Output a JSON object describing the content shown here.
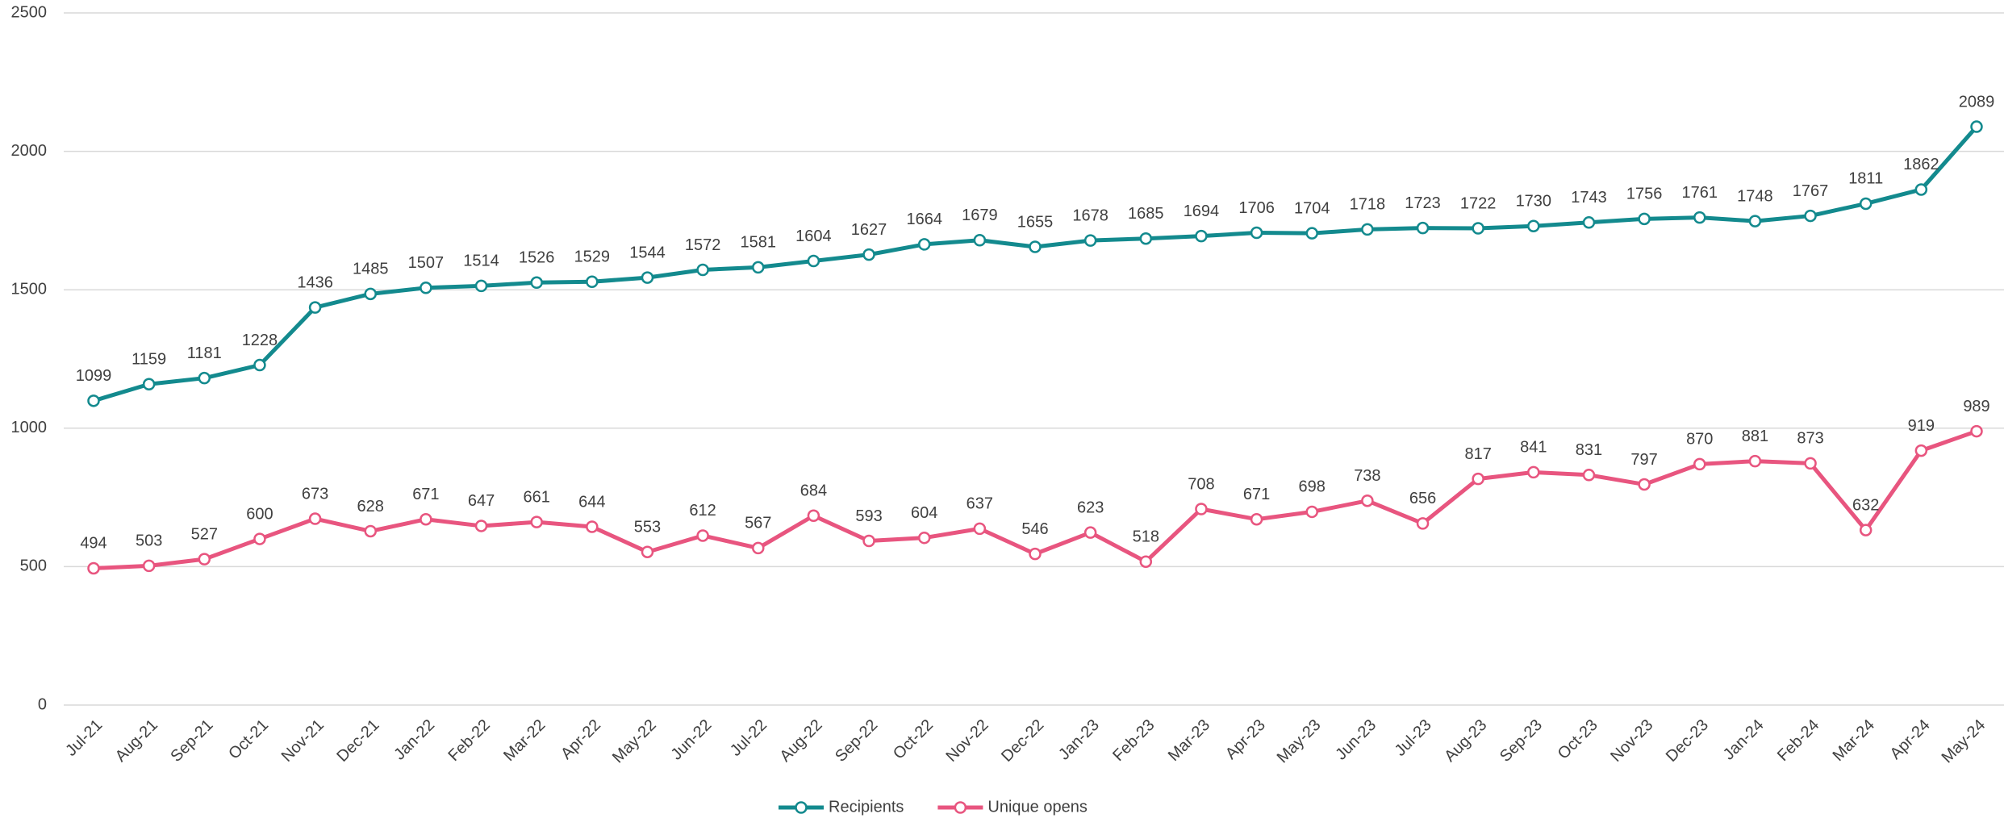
{
  "chart_data": {
    "type": "line",
    "categories": [
      "Jul-21",
      "Aug-21",
      "Sep-21",
      "Oct-21",
      "Nov-21",
      "Dec-21",
      "Jan-22",
      "Feb-22",
      "Mar-22",
      "Apr-22",
      "May-22",
      "Jun-22",
      "Jul-22",
      "Aug-22",
      "Sep-22",
      "Oct-22",
      "Nov-22",
      "Dec-22",
      "Jan-23",
      "Feb-23",
      "Mar-23",
      "Apr-23",
      "May-23",
      "Jun-23",
      "Jul-23",
      "Aug-23",
      "Sep-23",
      "Oct-23",
      "Nov-23",
      "Dec-23",
      "Jan-24",
      "Feb-24",
      "Mar-24",
      "Apr-24",
      "May-24"
    ],
    "series": [
      {
        "name": "Recipients",
        "color": "#138a8e",
        "values": [
          1099,
          1159,
          1181,
          1228,
          1436,
          1485,
          1507,
          1514,
          1526,
          1529,
          1544,
          1572,
          1581,
          1604,
          1627,
          1664,
          1679,
          1655,
          1678,
          1685,
          1694,
          1706,
          1704,
          1718,
          1723,
          1722,
          1730,
          1743,
          1756,
          1761,
          1748,
          1767,
          1811,
          1862,
          2089
        ]
      },
      {
        "name": "Unique opens",
        "color": "#e8557f",
        "values": [
          494,
          503,
          527,
          600,
          673,
          628,
          671,
          647,
          661,
          644,
          553,
          612,
          567,
          684,
          593,
          604,
          637,
          546,
          623,
          518,
          708,
          671,
          698,
          738,
          656,
          817,
          841,
          831,
          797,
          870,
          881,
          873,
          632,
          919,
          989
        ]
      }
    ],
    "ylim": [
      0,
      2500
    ],
    "yticks": [
      0,
      500,
      1000,
      1500,
      2000,
      2500
    ],
    "grid": true,
    "legend": "bottom"
  }
}
